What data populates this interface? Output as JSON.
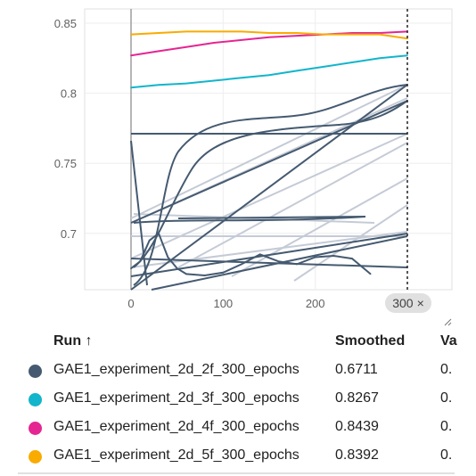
{
  "chart_data": {
    "type": "line",
    "x_ticks": [
      "0",
      "100",
      "200",
      "300"
    ],
    "y_ticks": [
      "0.85",
      "0.8",
      "0.75",
      "0.7"
    ],
    "xlim": [
      -50,
      350
    ],
    "ylim": [
      0.66,
      0.855
    ],
    "hover_step": 300,
    "series": [
      {
        "name": "GAE1_experiment_2d_2f_300_epochs",
        "color": "#455a70",
        "x": [
          0,
          10,
          20,
          30,
          40,
          50,
          60,
          80,
          100,
          120,
          140,
          160,
          180,
          200,
          220,
          240,
          260
        ],
        "y": [
          0.675,
          0.68,
          0.695,
          0.7,
          0.683,
          0.675,
          0.671,
          0.67,
          0.672,
          0.678,
          0.685,
          0.68,
          0.678,
          0.683,
          0.684,
          0.682,
          0.671
        ]
      },
      {
        "name": "GAE1_experiment_2d_3f_300_epochs",
        "color": "#12b5cb",
        "x": [
          0,
          30,
          60,
          90,
          120,
          150,
          180,
          210,
          240,
          270,
          300
        ],
        "y": [
          0.804,
          0.806,
          0.807,
          0.809,
          0.811,
          0.813,
          0.816,
          0.819,
          0.822,
          0.825,
          0.827
        ]
      },
      {
        "name": "GAE1_experiment_2d_4f_300_epochs",
        "color": "#e52592",
        "x": [
          0,
          30,
          60,
          90,
          120,
          150,
          180,
          210,
          240,
          270,
          300
        ],
        "y": [
          0.827,
          0.83,
          0.833,
          0.836,
          0.838,
          0.84,
          0.841,
          0.842,
          0.843,
          0.843,
          0.844
        ]
      },
      {
        "name": "GAE1_experiment_2d_5f_300_epochs",
        "color": "#f9ab00",
        "x": [
          0,
          30,
          60,
          90,
          120,
          150,
          180,
          210,
          240,
          270,
          300
        ],
        "y": [
          0.842,
          0.843,
          0.844,
          0.844,
          0.844,
          0.843,
          0.843,
          0.842,
          0.842,
          0.842,
          0.839
        ]
      }
    ]
  },
  "hover_label": "300",
  "close_glyph": "×",
  "table": {
    "col_run": "Run ↑",
    "col_smoothed": "Smoothed",
    "col_value": "Va",
    "rows": [
      {
        "name": "GAE1_experiment_2d_2f_300_epochs",
        "smoothed": "0.6711",
        "value": "0.",
        "color": "#455a70"
      },
      {
        "name": "GAE1_experiment_2d_3f_300_epochs",
        "smoothed": "0.8267",
        "value": "0.",
        "color": "#12b5cb"
      },
      {
        "name": "GAE1_experiment_2d_4f_300_epochs",
        "smoothed": "0.8439",
        "value": "0.",
        "color": "#e52592"
      },
      {
        "name": "GAE1_experiment_2d_5f_300_epochs",
        "smoothed": "0.8392",
        "value": "0.",
        "color": "#f9ab00"
      }
    ]
  }
}
